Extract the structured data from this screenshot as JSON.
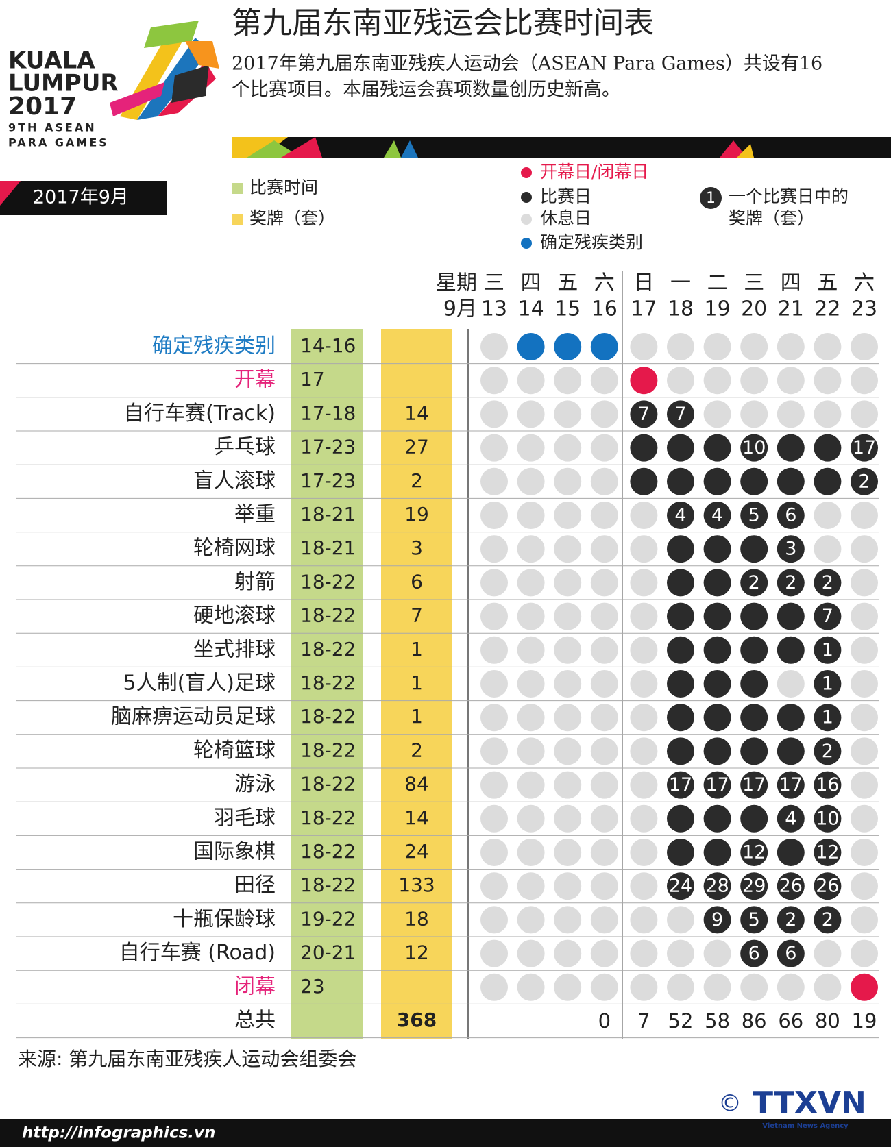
{
  "logo": {
    "line1": "KUALA",
    "line2": "LUMPUR",
    "line3": "2017",
    "line4": "9TH ASEAN",
    "line5": "PARA GAMES"
  },
  "header": {
    "title": "第九届东南亚残运会比赛时间表",
    "subtitle_line1": "2017年第九届东南亚残疾人运动会（ASEAN Para Games）共设有16",
    "subtitle_line2": "个比赛项目。本届残运会赛项数量创历史新高。"
  },
  "month": "2017年9月",
  "legend": {
    "columns": [
      {
        "label": "比赛时间",
        "color": "#c5d98a"
      },
      {
        "label": "奖牌（套）",
        "color": "#f7d55a"
      }
    ],
    "dots": [
      {
        "label": "开幕日/闭幕日",
        "color": "#e5194b",
        "text_color": "#e5194b"
      },
      {
        "label": "比赛日",
        "color": "#2b2b2b"
      },
      {
        "label": "休息日",
        "color": "#dcdcdc"
      },
      {
        "label": "确定残疾类别",
        "color": "#1372c0"
      }
    ],
    "numbered": {
      "sample": "1",
      "line1": "一个比赛日中的",
      "line2": "奖牌（套）"
    }
  },
  "days_header": {
    "week": "星期",
    "month": "9月"
  },
  "days": [
    {
      "weekday": "三",
      "date": "13"
    },
    {
      "weekday": "四",
      "date": "14"
    },
    {
      "weekday": "五",
      "date": "15"
    },
    {
      "weekday": "六",
      "date": "16"
    },
    {
      "weekday": "日",
      "date": "17"
    },
    {
      "weekday": "一",
      "date": "18"
    },
    {
      "weekday": "二",
      "date": "19"
    },
    {
      "weekday": "三",
      "date": "20"
    },
    {
      "weekday": "四",
      "date": "21"
    },
    {
      "weekday": "五",
      "date": "22"
    },
    {
      "weekday": "六",
      "date": "23"
    }
  ],
  "rows": [
    {
      "name": "确定残疾类别",
      "name_color": "#1f7cc4",
      "dates": "14-16",
      "cells": [
        "#dcdcdc",
        "#1372c0",
        "#1372c0",
        "#1372c0",
        "#dcdcdc",
        "#dcdcdc",
        "#dcdcdc",
        "#dcdcdc",
        "#dcdcdc",
        "#dcdcdc",
        "#dcdcdc"
      ]
    },
    {
      "name": "开幕",
      "name_color": "#e5237a",
      "dates": "17",
      "cells": [
        "#dcdcdc",
        "#dcdcdc",
        "#dcdcdc",
        "#dcdcdc",
        "#e5194b",
        "#dcdcdc",
        "#dcdcdc",
        "#dcdcdc",
        "#dcdcdc",
        "#dcdcdc",
        "#dcdcdc"
      ]
    },
    {
      "name": "自行车赛(Track)",
      "dates": "17-18",
      "medals": 14,
      "cells": [
        "#dcdcdc",
        "#dcdcdc",
        "#dcdcdc",
        "#dcdcdc",
        7,
        7,
        "#dcdcdc",
        "#dcdcdc",
        "#dcdcdc",
        "#dcdcdc",
        "#dcdcdc"
      ]
    },
    {
      "name": "乒乓球",
      "dates": "17-23",
      "medals": 27,
      "cells": [
        "#dcdcdc",
        "#dcdcdc",
        "#dcdcdc",
        "#dcdcdc",
        "#2b2b2b",
        "#2b2b2b",
        "#2b2b2b",
        10,
        "#2b2b2b",
        "#2b2b2b",
        17
      ]
    },
    {
      "name": "盲人滚球",
      "dates": "17-23",
      "medals": 2,
      "cells": [
        "#dcdcdc",
        "#dcdcdc",
        "#dcdcdc",
        "#dcdcdc",
        "#2b2b2b",
        "#2b2b2b",
        "#2b2b2b",
        "#2b2b2b",
        "#2b2b2b",
        "#2b2b2b",
        2
      ]
    },
    {
      "name": "举重",
      "dates": "18-21",
      "medals": 19,
      "cells": [
        "#dcdcdc",
        "#dcdcdc",
        "#dcdcdc",
        "#dcdcdc",
        "#dcdcdc",
        4,
        4,
        5,
        6,
        "#dcdcdc",
        "#dcdcdc"
      ]
    },
    {
      "name": "轮椅网球",
      "dates": "18-21",
      "medals": 3,
      "cells": [
        "#dcdcdc",
        "#dcdcdc",
        "#dcdcdc",
        "#dcdcdc",
        "#dcdcdc",
        "#2b2b2b",
        "#2b2b2b",
        "#2b2b2b",
        3,
        "#dcdcdc",
        "#dcdcdc"
      ]
    },
    {
      "name": "射箭",
      "dates": "18-22",
      "medals": 6,
      "cells": [
        "#dcdcdc",
        "#dcdcdc",
        "#dcdcdc",
        "#dcdcdc",
        "#dcdcdc",
        "#2b2b2b",
        "#2b2b2b",
        2,
        2,
        2,
        "#dcdcdc"
      ]
    },
    {
      "name": "硬地滚球",
      "dates": "18-22",
      "medals": 7,
      "cells": [
        "#dcdcdc",
        "#dcdcdc",
        "#dcdcdc",
        "#dcdcdc",
        "#dcdcdc",
        "#2b2b2b",
        "#2b2b2b",
        "#2b2b2b",
        "#2b2b2b",
        7,
        "#dcdcdc"
      ]
    },
    {
      "name": "坐式排球",
      "dates": "18-22",
      "medals": 1,
      "cells": [
        "#dcdcdc",
        "#dcdcdc",
        "#dcdcdc",
        "#dcdcdc",
        "#dcdcdc",
        "#2b2b2b",
        "#2b2b2b",
        "#2b2b2b",
        "#2b2b2b",
        1,
        "#dcdcdc"
      ]
    },
    {
      "name": "5人制(盲人)足球",
      "dates": "18-22",
      "medals": 1,
      "cells": [
        "#dcdcdc",
        "#dcdcdc",
        "#dcdcdc",
        "#dcdcdc",
        "#dcdcdc",
        "#2b2b2b",
        "#2b2b2b",
        "#2b2b2b",
        "#dcdcdc",
        1,
        "#dcdcdc"
      ]
    },
    {
      "name": "脑麻痹运动员足球",
      "dates": "18-22",
      "medals": 1,
      "cells": [
        "#dcdcdc",
        "#dcdcdc",
        "#dcdcdc",
        "#dcdcdc",
        "#dcdcdc",
        "#2b2b2b",
        "#2b2b2b",
        "#2b2b2b",
        "#2b2b2b",
        1,
        "#dcdcdc"
      ]
    },
    {
      "name": "轮椅篮球",
      "dates": "18-22",
      "medals": 2,
      "cells": [
        "#dcdcdc",
        "#dcdcdc",
        "#dcdcdc",
        "#dcdcdc",
        "#dcdcdc",
        "#2b2b2b",
        "#2b2b2b",
        "#2b2b2b",
        "#2b2b2b",
        2,
        "#dcdcdc"
      ]
    },
    {
      "name": "游泳",
      "dates": "18-22",
      "medals": 84,
      "cells": [
        "#dcdcdc",
        "#dcdcdc",
        "#dcdcdc",
        "#dcdcdc",
        "#dcdcdc",
        17,
        17,
        17,
        17,
        16,
        "#dcdcdc"
      ]
    },
    {
      "name": "羽毛球",
      "dates": "18-22",
      "medals": 14,
      "cells": [
        "#dcdcdc",
        "#dcdcdc",
        "#dcdcdc",
        "#dcdcdc",
        "#dcdcdc",
        "#2b2b2b",
        "#2b2b2b",
        "#2b2b2b",
        4,
        10,
        "#dcdcdc"
      ]
    },
    {
      "name": "国际象棋",
      "dates": "18-22",
      "medals": 24,
      "cells": [
        "#dcdcdc",
        "#dcdcdc",
        "#dcdcdc",
        "#dcdcdc",
        "#dcdcdc",
        "#2b2b2b",
        "#2b2b2b",
        12,
        "#2b2b2b",
        12,
        "#dcdcdc"
      ]
    },
    {
      "name": "田径",
      "dates": "18-22",
      "medals": 133,
      "cells": [
        "#dcdcdc",
        "#dcdcdc",
        "#dcdcdc",
        "#dcdcdc",
        "#dcdcdc",
        24,
        28,
        29,
        26,
        26,
        "#dcdcdc"
      ]
    },
    {
      "name": "十瓶保龄球",
      "dates": "19-22",
      "medals": 18,
      "cells": [
        "#dcdcdc",
        "#dcdcdc",
        "#dcdcdc",
        "#dcdcdc",
        "#dcdcdc",
        "#dcdcdc",
        9,
        5,
        2,
        2,
        "#dcdcdc"
      ]
    },
    {
      "name": "自行车赛 (Road)",
      "dates": "20-21",
      "medals": 12,
      "cells": [
        "#dcdcdc",
        "#dcdcdc",
        "#dcdcdc",
        "#dcdcdc",
        "#dcdcdc",
        "#dcdcdc",
        "#dcdcdc",
        6,
        6,
        "#dcdcdc",
        "#dcdcdc"
      ]
    },
    {
      "name": "闭幕",
      "name_color": "#e5237a",
      "dates": "23",
      "cells": [
        "#dcdcdc",
        "#dcdcdc",
        "#dcdcdc",
        "#dcdcdc",
        "#dcdcdc",
        "#dcdcdc",
        "#dcdcdc",
        "#dcdcdc",
        "#dcdcdc",
        "#dcdcdc",
        "#e5194b"
      ]
    }
  ],
  "totals": {
    "name": "总共",
    "medals": 368,
    "days": [
      null,
      null,
      null,
      0,
      7,
      52,
      58,
      86,
      66,
      80,
      19
    ]
  },
  "source": "来源: 第九届东南亚残疾人运动会组委会",
  "footer": {
    "url": "http://infographics.vn",
    "copyright": "©",
    "brand": "TTXVN",
    "brand_sub": "Vietnam News Agency"
  }
}
